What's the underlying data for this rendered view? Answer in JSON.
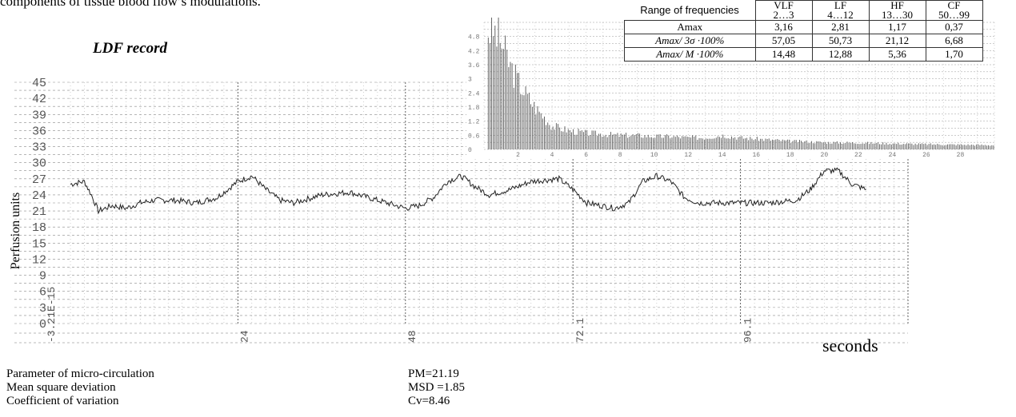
{
  "intro_text": "components of tissue blood flow’s modulations.",
  "ldf_title": "LDF record",
  "y_axis_label": "Perfusion units",
  "x_axis_unit": "seconds",
  "stats": [
    {
      "label": "Parameter of micro-circulation",
      "value": "PM=21.19"
    },
    {
      "label": "Mean square deviation",
      "value": "MSD =1.85"
    },
    {
      "label": "Coefficient of variation",
      "value": "Cv=8.46"
    }
  ],
  "table": {
    "header_label": "Range of frequencies",
    "columns": [
      {
        "name": "VLF",
        "range": "2…3"
      },
      {
        "name": "LF",
        "range": "4…12"
      },
      {
        "name": "HF",
        "range": "13…30"
      },
      {
        "name": "CF",
        "range": "50…99"
      }
    ],
    "rows": [
      {
        "label": "Amax",
        "values": [
          "3,16",
          "2,81",
          "1,17",
          "0,37"
        ]
      },
      {
        "label": "Amax/ 3σ ·100%",
        "values": [
          "57,05",
          "50,73",
          "21,12",
          "6,68"
        ]
      },
      {
        "label": "Amax/ M ·100%",
        "values": [
          "14,48",
          "12,88",
          "5,36",
          "1,70"
        ]
      }
    ]
  },
  "chart_data": [
    {
      "type": "line",
      "title": "LDF record",
      "ylabel": "Perfusion units",
      "xlabel": "seconds",
      "y_ticks": [
        "45",
        "42",
        "39",
        "36",
        "33",
        "30",
        "27",
        "24",
        "21",
        "18",
        "15",
        "12",
        "9",
        "6",
        "3",
        "0"
      ],
      "x_ticks": [
        "-3.21E-15",
        "24",
        "48",
        "72.1",
        "96.1"
      ],
      "xlim": [
        0,
        120
      ],
      "ylim": [
        0,
        45
      ],
      "grid": true,
      "series": [
        {
          "x": [
            0,
            2,
            3,
            4,
            6,
            8,
            10,
            12,
            15,
            18,
            21,
            24,
            26,
            28,
            30,
            32,
            36,
            40,
            44,
            48,
            50,
            52,
            54,
            56,
            58,
            60,
            63,
            66,
            70,
            72,
            74,
            76,
            78,
            80,
            82,
            84,
            86,
            88,
            90,
            92,
            96,
            100,
            104,
            106,
            108,
            110,
            112,
            114
          ],
          "y": [
            26.0,
            26.5,
            24.0,
            21.0,
            22.0,
            21.5,
            22.5,
            23.0,
            23.0,
            22.5,
            23.5,
            26.5,
            27.5,
            25.0,
            23.0,
            22.5,
            24.0,
            24.5,
            23.0,
            21.5,
            22.0,
            23.5,
            26.5,
            27.5,
            25.5,
            24.0,
            25.0,
            26.5,
            27.0,
            25.0,
            22.5,
            22.0,
            21.5,
            22.5,
            26.5,
            27.5,
            26.5,
            23.5,
            22.5,
            22.5,
            22.5,
            22.5,
            23.0,
            25.0,
            28.5,
            28.5,
            26.0,
            25.0
          ]
        }
      ]
    },
    {
      "type": "bar",
      "title": "",
      "x_ticks": [
        "2",
        "4",
        "6",
        "8",
        "10",
        "12",
        "14",
        "16",
        "18",
        "20",
        "22",
        "24",
        "26",
        "28"
      ],
      "y_ticks": [
        "4.8",
        "4.2",
        "3.6",
        "3",
        "2.4",
        "1.8",
        "1.2",
        "0.6",
        "0"
      ],
      "xlim": [
        0,
        30
      ],
      "ylim": [
        0,
        5.4
      ],
      "grid": true,
      "series": [
        {
          "x": [
            0.5,
            1,
            1.5,
            2,
            2.5,
            3,
            3.5,
            4,
            5,
            6,
            7,
            8,
            9,
            10,
            11,
            12,
            13,
            14,
            15,
            16,
            17,
            18,
            19,
            20,
            22,
            24,
            26,
            28,
            30
          ],
          "y": [
            5.1,
            4.6,
            3.6,
            2.9,
            2.3,
            1.8,
            1.4,
            1.0,
            0.8,
            0.7,
            0.65,
            0.6,
            0.6,
            0.55,
            0.55,
            0.5,
            0.5,
            0.6,
            0.5,
            0.45,
            0.4,
            0.35,
            0.33,
            0.3,
            0.28,
            0.25,
            0.22,
            0.2,
            0.18
          ]
        }
      ]
    }
  ]
}
